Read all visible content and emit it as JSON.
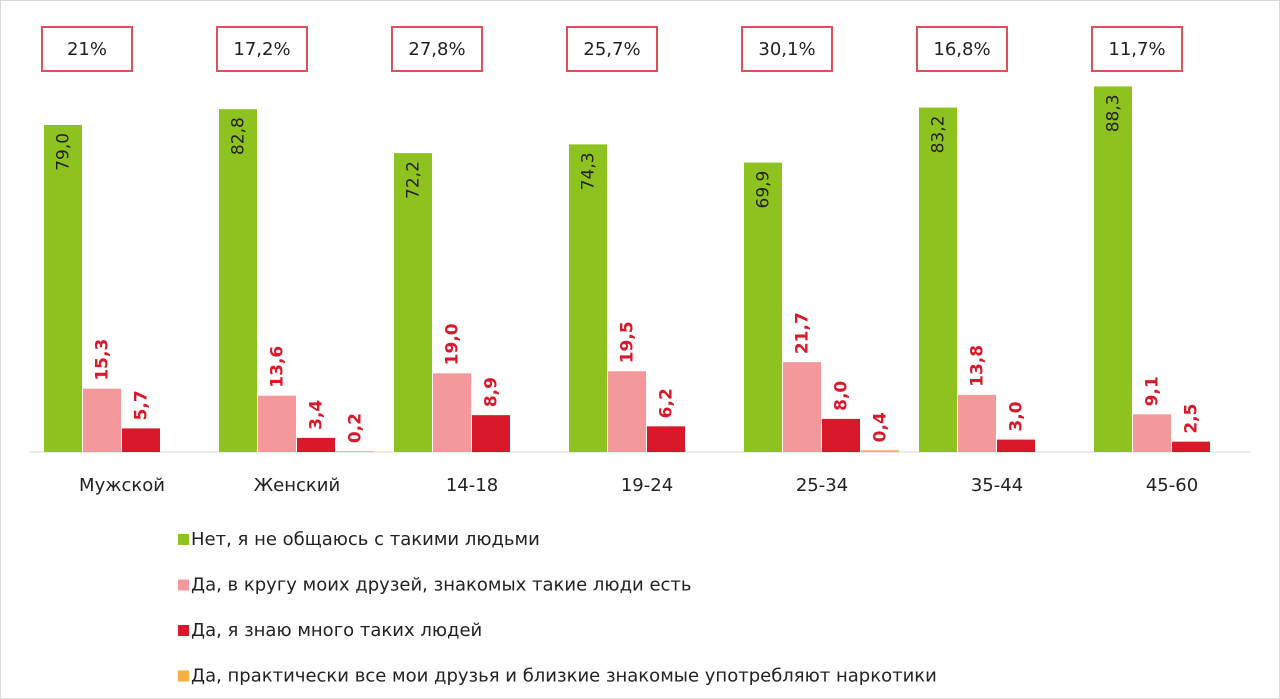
{
  "chart_data": {
    "type": "bar",
    "categories": [
      "Мужской",
      "Женский",
      "14-18",
      "19-24",
      "25-34",
      "35-44",
      "45-60"
    ],
    "annotations": [
      "21%",
      "17,2%",
      "27,8%",
      "25,7%",
      "30,1%",
      "16,8%",
      "11,7%"
    ],
    "series": [
      {
        "name": "Нет, я не общаюсь с такими людьми",
        "color": "#8dc21f",
        "values": [
          79.0,
          82.8,
          72.2,
          74.3,
          69.9,
          83.2,
          88.3
        ],
        "value_labels": [
          "79,0",
          "82,8",
          "72,2",
          "74,3",
          "69,9",
          "83,2",
          "88,3"
        ]
      },
      {
        "name": "Да, в кругу моих друзей, знакомых такие люди есть",
        "color": "#f4989c",
        "values": [
          15.3,
          13.6,
          19.0,
          19.5,
          21.7,
          13.8,
          9.1
        ],
        "value_labels": [
          "15,3",
          "13,6",
          "19,0",
          "19,5",
          "21,7",
          "13,8",
          "9,1"
        ]
      },
      {
        "name": "Да, я знаю много таких людей",
        "color": "#d9182a",
        "values": [
          5.7,
          3.4,
          8.9,
          6.2,
          8.0,
          3.0,
          2.5
        ],
        "value_labels": [
          "5,7",
          "3,4",
          "8,9",
          "6,2",
          "8,0",
          "3,0",
          "2,5"
        ]
      },
      {
        "name": "Да, практически все мои друзья и близкие знакомые употребляют наркотики",
        "color": "#f5b041",
        "values": [
          null,
          0.2,
          null,
          null,
          0.4,
          null,
          null
        ],
        "value_labels": [
          null,
          "0,2",
          null,
          null,
          "0,4",
          null,
          null
        ]
      }
    ],
    "ylim": [
      0,
      100
    ]
  }
}
